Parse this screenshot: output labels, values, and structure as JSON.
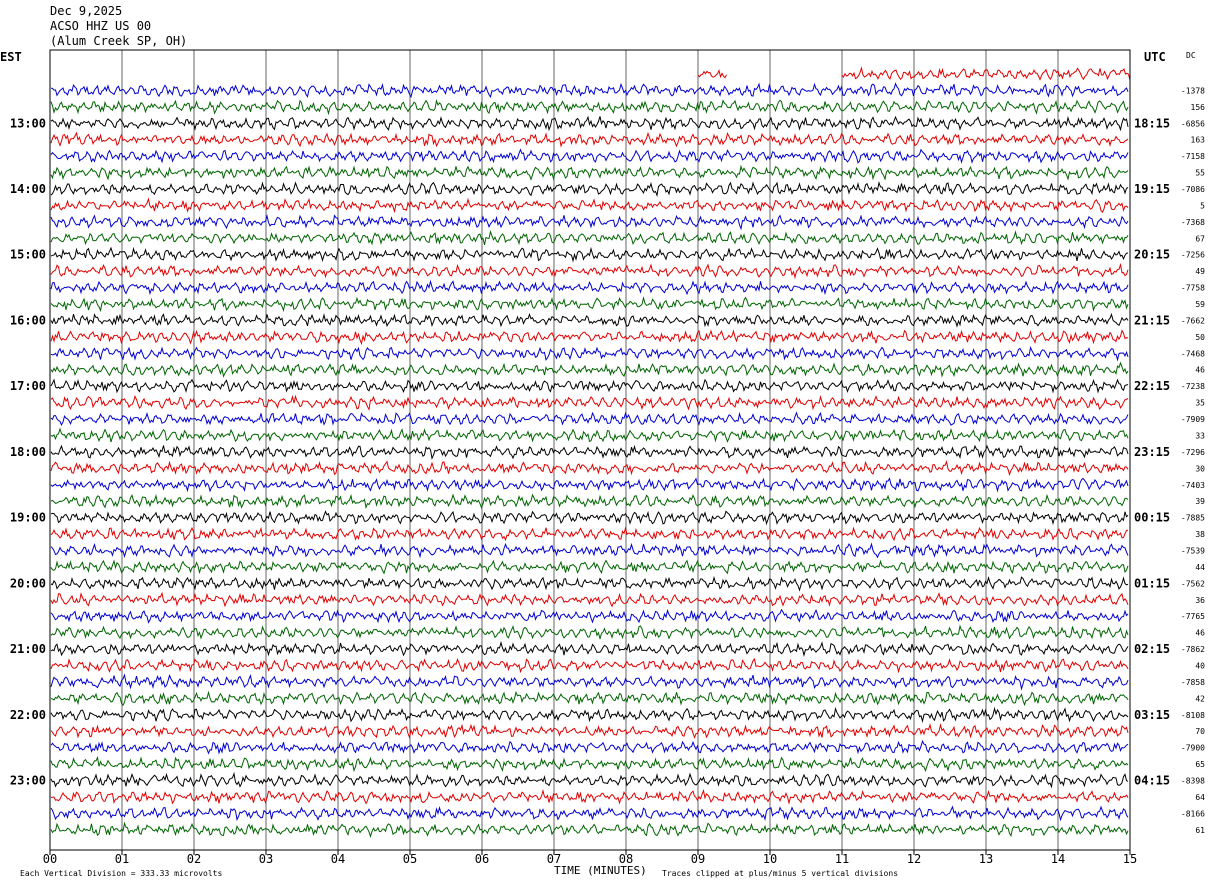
{
  "header": {
    "date": "Dec 9,2025",
    "station": "ACSO HHZ US 00",
    "location": "(Alum Creek SP, OH)"
  },
  "axes": {
    "left_tz": "EST",
    "right_tz": "UTC",
    "dc_label": "DC",
    "x_label": "TIME (MINUTES)",
    "x_ticks": [
      "00",
      "01",
      "02",
      "03",
      "04",
      "05",
      "06",
      "07",
      "08",
      "09",
      "10",
      "11",
      "12",
      "13",
      "14",
      "15"
    ]
  },
  "footer": {
    "scale": "Each Vertical Division =  333.33 microvolts",
    "clip": "Traces clipped at plus/minus 5 vertical divisions"
  },
  "colors": {
    "black": "#000000",
    "red": "#e00000",
    "blue": "#0000d0",
    "green": "#006400"
  },
  "chart_data": {
    "type": "helicorder",
    "minutes_per_line": 15,
    "color_cycle": [
      "black",
      "red",
      "blue",
      "green"
    ],
    "first_line_color": "red",
    "first_line_partial_segments": [
      [
        9.0,
        9.4
      ],
      [
        11.0,
        15.0
      ]
    ],
    "left_hour_labels": [
      "13:00",
      "14:00",
      "15:00",
      "16:00",
      "17:00",
      "18:00",
      "19:00",
      "20:00",
      "21:00",
      "22:00",
      "23:00"
    ],
    "right_hour_labels": [
      "18:15",
      "19:15",
      "20:15",
      "21:15",
      "22:15",
      "23:15",
      "00:15",
      "01:15",
      "02:15",
      "03:15",
      "04:15"
    ],
    "dc_offsets": [
      "-1378",
      "156",
      "-6856",
      "163",
      "-7158",
      "55",
      "-7086",
      "5",
      "-7368",
      "67",
      "-7256",
      "49",
      "-7758",
      "59",
      "-7662",
      "50",
      "-7468",
      "46",
      "-7238",
      "35",
      "-7909",
      "33",
      "-7296",
      "30",
      "-7403",
      "39",
      "-7885",
      "38",
      "-7539",
      "44",
      "-7562",
      "36",
      "-7765",
      "46",
      "-7862",
      "40",
      "-7858",
      "42",
      "-8108",
      "70",
      "-7900",
      "65",
      "-8398",
      "64",
      "-8166",
      "61"
    ]
  }
}
